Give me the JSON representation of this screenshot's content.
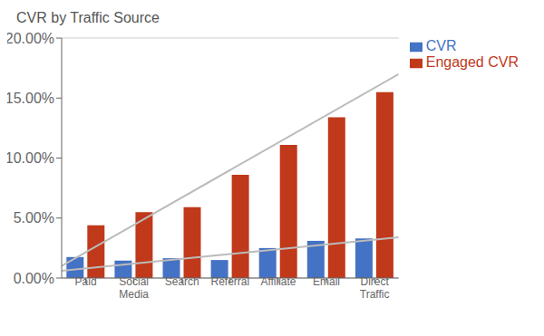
{
  "chart_data": {
    "type": "bar",
    "title": "CVR by Traffic Source",
    "categories": [
      "Paid",
      "Social\nMedia",
      "Search",
      "Referral",
      "Affiliate",
      "Email",
      "Direct\nTraffic"
    ],
    "series": [
      {
        "name": "CVR",
        "color": "#4472C4",
        "values": [
          0.0175,
          0.0145,
          0.0165,
          0.015,
          0.025,
          0.031,
          0.033
        ]
      },
      {
        "name": "Engaged CVR",
        "color": "#C0391B",
        "values": [
          0.044,
          0.055,
          0.059,
          0.086,
          0.111,
          0.134,
          0.155
        ]
      }
    ],
    "trend_lines": [
      {
        "type": "line",
        "color": "#BBBBBB",
        "values": [
          0.01,
          0.17
        ]
      },
      {
        "type": "line",
        "color": "#BBBBBB",
        "values": [
          0.006,
          0.034
        ]
      }
    ],
    "ylim": [
      0,
      0.2
    ],
    "yticks": [
      {
        "value": 0.0,
        "label": "0.00%"
      },
      {
        "value": 0.05,
        "label": "5.00%"
      },
      {
        "value": 0.1,
        "label": "10.00%"
      },
      {
        "value": 0.15,
        "label": "15.00%"
      },
      {
        "value": 0.2,
        "label": "20.00%"
      }
    ],
    "grid": true,
    "legend": "upper right"
  }
}
